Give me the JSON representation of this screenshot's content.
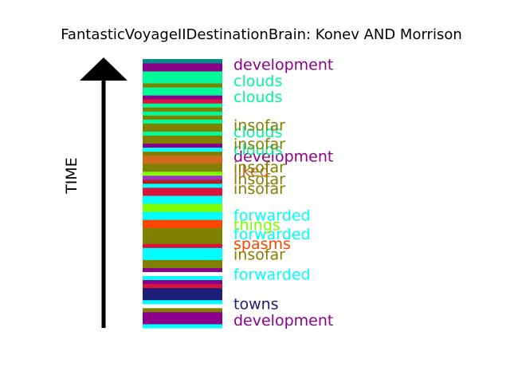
{
  "chart_data": {
    "type": "bar",
    "title": "FantasticVoyageIIDestinationBrain: Konev AND Morrison",
    "ylabel": "TIME",
    "grid": false,
    "legend": "none",
    "orientation": "time runs upward (bottom = earliest)",
    "stripes": [
      "#00ffff",
      "#8b008b",
      "#8b008b",
      "#8b008b",
      "#808000",
      "#ffffff",
      "#00ffff",
      "#1e1e78",
      "#1e1e78",
      "#1e1e78",
      "#dc143c",
      "#8b008b",
      "#00ffff",
      "#ffffff",
      "#8b008b",
      "#808000",
      "#808000",
      "#00ffff",
      "#00ffff",
      "#00ffff",
      "#dc143c",
      "#808000",
      "#808000",
      "#808000",
      "#808000",
      "#ff4500",
      "#ff4500",
      "#00ffff",
      "#00ffff",
      "#7fff00",
      "#7fff00",
      "#00ffff",
      "#00ffff",
      "#dc143c",
      "#dc143c",
      "#00ffff",
      "#b22222",
      "#9932cc",
      "#7fff00",
      "#808000",
      "#808000",
      "#d2691e",
      "#d2691e",
      "#808000",
      "#00ffff",
      "#8b008b",
      "#808000",
      "#808000",
      "#00fa9a",
      "#808000",
      "#808000",
      "#00fa9a",
      "#808000",
      "#00fa9a",
      "#808000",
      "#00fa9a",
      "#dc143c",
      "#8b008b",
      "#00fa9a",
      "#00fa9a",
      "#808000",
      "#00fa9a",
      "#00fa9a",
      "#00fa9a",
      "#8b008b",
      "#8b008b",
      "#008b8b"
    ],
    "labels": [
      {
        "text": "development",
        "color": "#8b008b",
        "pos": 0.03
      },
      {
        "text": "towns",
        "color": "#1e1e78",
        "pos": 0.09
      },
      {
        "text": "forwarded",
        "color": "#00ffff",
        "pos": 0.2
      },
      {
        "text": "insofar",
        "color": "#808000",
        "pos": 0.275
      },
      {
        "text": "spasms",
        "color": "#ff4500",
        "pos": 0.315
      },
      {
        "text": "forwarded",
        "color": "#00ffff",
        "pos": 0.35
      },
      {
        "text": "things",
        "color": "#7fff00",
        "pos": 0.385
      },
      {
        "text": "forwarded",
        "color": "#00ffff",
        "pos": 0.42
      },
      {
        "text": "insofar",
        "color": "#808000",
        "pos": 0.52
      },
      {
        "text": "insofar",
        "color": "#808000",
        "pos": 0.555
      },
      {
        "text": "liked",
        "color": "#d2691e",
        "pos": 0.585
      },
      {
        "text": "insofar",
        "color": "#808000",
        "pos": 0.6
      },
      {
        "text": "development",
        "color": "#8b008b",
        "pos": 0.64
      },
      {
        "text": "clouds",
        "color": "#00fa9a",
        "pos": 0.665
      },
      {
        "text": "insofar",
        "color": "#808000",
        "pos": 0.685
      },
      {
        "text": "clouds",
        "color": "#00fa9a",
        "pos": 0.73
      },
      {
        "text": "insofar",
        "color": "#808000",
        "pos": 0.755
      },
      {
        "text": "clouds",
        "color": "#00fa9a",
        "pos": 0.86
      },
      {
        "text": "clouds",
        "color": "#00fa9a",
        "pos": 0.92
      },
      {
        "text": "development",
        "color": "#8b008b",
        "pos": 0.98
      }
    ]
  }
}
